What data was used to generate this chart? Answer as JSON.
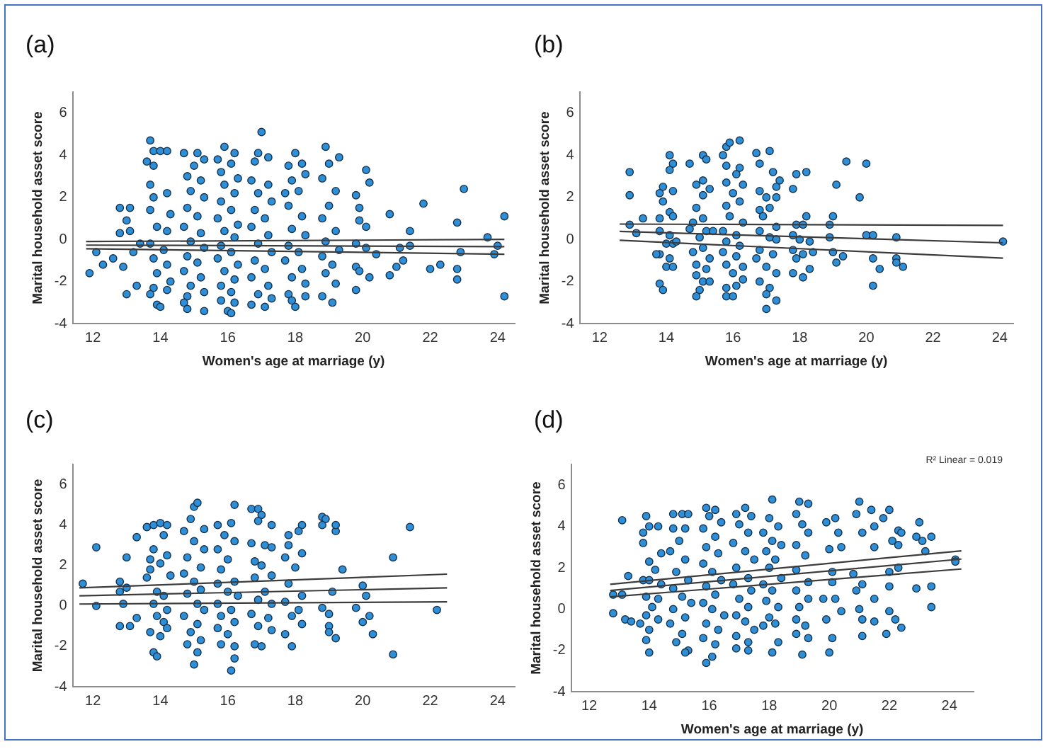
{
  "chart_data": [
    {
      "type": "scatter",
      "title": "(a)",
      "xlabel": "Women's age at marriage (y)",
      "ylabel": "Marital household asset score",
      "xlim": [
        11.4,
        24.5
      ],
      "xticks": [
        12,
        14,
        16,
        18,
        20,
        22,
        24
      ],
      "ylim": [
        -4,
        7
      ],
      "yticks": [
        -4,
        -2,
        0,
        2,
        4,
        6
      ],
      "marker": "circle",
      "series": [
        {
          "color": "#2e8ed6",
          "x": [
            11.9,
            12.3,
            12.6,
            12.1,
            12.8,
            13.1,
            13.0,
            13.1,
            12.8,
            12.9,
            13.0,
            13.3,
            13.4,
            13.2,
            13.7,
            13.8,
            14.0,
            14.2,
            13.6,
            13.8,
            13.7,
            14.2,
            13.8,
            13.7,
            14.3,
            13.9,
            14.2,
            13.7,
            14.1,
            13.8,
            14.2,
            13.9,
            14.3,
            13.8,
            14.2,
            13.9,
            14.0,
            13.7,
            14.7,
            15.1,
            15.3,
            15.0,
            14.8,
            15.2,
            14.9,
            15.3,
            14.8,
            15.1,
            14.7,
            15.2,
            14.9,
            15.3,
            14.8,
            15.1,
            14.7,
            15.2,
            14.9,
            15.3,
            14.8,
            14.7,
            14.8,
            15.3,
            15.9,
            16.2,
            15.7,
            16.1,
            15.8,
            16.3,
            15.9,
            16.2,
            15.8,
            16.1,
            15.7,
            16.3,
            15.9,
            16.2,
            15.8,
            16.1,
            15.7,
            16.3,
            15.9,
            16.2,
            15.8,
            16.1,
            15.8,
            16.2,
            16.0,
            16.1,
            17.0,
            16.9,
            16.8,
            17.2,
            16.7,
            17.2,
            16.9,
            17.3,
            16.8,
            17.1,
            16.7,
            17.2,
            16.9,
            17.3,
            16.8,
            17.1,
            16.7,
            17.2,
            16.9,
            17.3,
            16.7,
            17.1,
            18.0,
            17.8,
            18.2,
            18.3,
            17.9,
            17.7,
            18.1,
            17.8,
            18.2,
            17.9,
            18.3,
            17.8,
            18.1,
            17.7,
            18.2,
            17.9,
            18.3,
            17.8,
            17.9,
            18.0,
            18.3,
            18.9,
            19.0,
            19.3,
            18.8,
            19.2,
            19.0,
            18.8,
            19.2,
            18.9,
            19.3,
            18.8,
            19.1,
            18.9,
            19.2,
            18.8,
            19.1,
            19.8,
            19.9,
            20.1,
            20.2,
            19.9,
            20.1,
            19.8,
            20.1,
            19.8,
            19.9,
            19.8,
            20.2,
            20.4,
            20.8,
            20.8,
            21.0,
            21.2,
            21.1,
            21.4,
            21.4,
            21.8,
            22.0,
            22.3,
            22.8,
            22.8,
            22.8,
            22.9,
            23.0,
            23.7,
            24.0,
            23.9,
            24.2,
            24.2
          ],
          "values": [
            -1.6,
            -1.2,
            -0.9,
            -0.6,
            1.5,
            1.5,
            0.9,
            0.4,
            0.3,
            -1.3,
            -2.6,
            -2.2,
            -0.2,
            -0.6,
            4.7,
            4.2,
            4.2,
            4.2,
            3.7,
            3.5,
            2.6,
            2.2,
            2.0,
            1.4,
            1.2,
            0.6,
            0.4,
            -0.2,
            -0.5,
            -0.9,
            -1.2,
            -1.6,
            -2.0,
            -2.3,
            -2.4,
            -3.1,
            -3.2,
            -2.6,
            4.1,
            4.1,
            3.8,
            3.5,
            3.0,
            2.8,
            2.3,
            2.0,
            1.5,
            1.1,
            0.6,
            0.3,
            -0.1,
            -0.4,
            -0.8,
            -1.1,
            -1.5,
            -1.8,
            -2.2,
            -2.5,
            -2.7,
            -3.0,
            -3.3,
            -3.4,
            4.4,
            4.1,
            3.8,
            3.6,
            3.2,
            2.9,
            2.6,
            2.2,
            1.8,
            1.4,
            1.0,
            0.7,
            0.4,
            0.1,
            -0.3,
            -0.6,
            -0.9,
            -1.2,
            -1.5,
            -1.9,
            -2.2,
            -2.5,
            -2.9,
            -3.0,
            -3.4,
            -3.5,
            5.1,
            4.1,
            3.7,
            3.9,
            2.8,
            2.6,
            2.2,
            1.8,
            1.4,
            1.0,
            0.6,
            0.2,
            -0.2,
            -0.6,
            -1.0,
            -1.4,
            -1.8,
            -2.2,
            -2.6,
            -2.8,
            -3.1,
            -3.2,
            4.1,
            3.5,
            3.6,
            3.1,
            2.8,
            2.2,
            2.3,
            1.6,
            1.1,
            0.5,
            0.2,
            -0.3,
            -0.6,
            -1.0,
            -1.4,
            -1.8,
            -2.1,
            -2.6,
            -2.9,
            -3.2,
            -2.7,
            4.4,
            3.6,
            3.9,
            2.9,
            2.3,
            1.6,
            1.0,
            0.4,
            -0.1,
            -0.5,
            -0.8,
            -1.2,
            -1.6,
            -2.1,
            -2.7,
            -3.0,
            2.1,
            1.5,
            3.3,
            2.7,
            0.9,
            0.6,
            -0.2,
            -0.4,
            -1.3,
            -1.5,
            -2.4,
            -1.8,
            -0.7,
            1.2,
            -1.7,
            -1.3,
            -1.0,
            -0.4,
            0.4,
            -0.3,
            1.7,
            -1.4,
            -1.2,
            0.8,
            -1.4,
            -1.9,
            -0.6,
            2.4,
            0.1,
            -0.3,
            -0.7,
            1.1,
            -2.7
          ]
        },
        {
          "type": "line",
          "marker": "none",
          "color": "#3c3c3c",
          "x": [
            11.8,
            24.2
          ],
          "values": [
            -0.27,
            -0.34
          ]
        },
        {
          "type": "line",
          "marker": "none",
          "color": "#3c3c3c",
          "x": [
            11.8,
            24.2
          ],
          "values": [
            -0.1,
            0.0
          ]
        },
        {
          "type": "line",
          "marker": "none",
          "color": "#3c3c3c",
          "x": [
            11.8,
            24.2
          ],
          "values": [
            -0.44,
            -0.7
          ]
        }
      ]
    },
    {
      "type": "scatter",
      "title": "(b)",
      "xlabel": "Women's age at marriage (y)",
      "ylabel": "Marital household asset score",
      "xlim": [
        11.4,
        24.4
      ],
      "xticks": [
        12,
        14,
        16,
        18,
        20,
        22,
        24
      ],
      "ylim": [
        -4,
        7
      ],
      "yticks": [
        -4,
        -2,
        0,
        2,
        4,
        6
      ],
      "marker": "circle",
      "series": [
        {
          "color": "#2e8ed6",
          "x": [
            12.9,
            12.9,
            12.9,
            13.1,
            13.3,
            14.1,
            14.2,
            14.1,
            13.9,
            13.8,
            14.2,
            13.9,
            14.1,
            14.2,
            13.8,
            13.8,
            14.1,
            14.0,
            14.2,
            13.8,
            13.7,
            14.1,
            14.0,
            14.2,
            13.8,
            13.9,
            14.3,
            14.7,
            15.1,
            15.2,
            14.9,
            15.1,
            15.3,
            15.1,
            14.9,
            14.8,
            15.1,
            14.7,
            15.2,
            15.0,
            14.8,
            15.1,
            15.3,
            14.9,
            15.2,
            14.9,
            15.1,
            15.3,
            15.0,
            14.9,
            15.4,
            15.8,
            15.9,
            16.2,
            15.7,
            15.8,
            16.1,
            16.2,
            15.8,
            16.3,
            16.0,
            15.8,
            16.2,
            15.9,
            16.3,
            15.7,
            16.1,
            15.8,
            16.2,
            15.7,
            16.1,
            15.8,
            16.3,
            16.0,
            15.8,
            16.1,
            16.3,
            15.8,
            16.0,
            16.7,
            17.1,
            16.8,
            17.2,
            17.4,
            16.8,
            17.0,
            17.3,
            16.8,
            17.1,
            17.3,
            16.9,
            17.3,
            16.8,
            17.1,
            17.3,
            16.8,
            17.2,
            16.7,
            17.0,
            17.3,
            16.8,
            17.1,
            17.0,
            17.3,
            17.0,
            17.9,
            18.2,
            17.8,
            18.2,
            17.9,
            18.1,
            17.8,
            18.0,
            18.3,
            17.8,
            18.1,
            17.9,
            18.3,
            17.8,
            18.1,
            18.4,
            18.9,
            19.0,
            19.1,
            19.4,
            18.9,
            19.0,
            19.1,
            19.3,
            19.8,
            20.0,
            20.0,
            20.2,
            20.2,
            20.2,
            20.4,
            20.9,
            20.9,
            20.9,
            21.1,
            24.1
          ],
          "values": [
            3.2,
            2.1,
            0.7,
            0.3,
            1.0,
            4.0,
            3.6,
            3.3,
            2.5,
            2.2,
            2.3,
            1.8,
            1.3,
            1.1,
            1.0,
            0.4,
            0.2,
            -0.2,
            -0.2,
            -0.7,
            -0.7,
            -0.9,
            -1.3,
            -1.3,
            -2.1,
            -2.4,
            -0.1,
            3.6,
            4.0,
            3.8,
            2.6,
            2.8,
            2.4,
            2.1,
            1.5,
            0.8,
            1.0,
            0.5,
            0.4,
            0.1,
            -0.6,
            -0.4,
            -0.9,
            -1.2,
            -1.4,
            -1.7,
            -2.0,
            -2.0,
            -2.4,
            -2.7,
            0.4,
            4.4,
            4.6,
            4.7,
            4.0,
            3.5,
            3.1,
            3.4,
            2.7,
            2.6,
            2.2,
            1.6,
            1.8,
            1.1,
            0.8,
            0.4,
            0.2,
            -0.1,
            -0.3,
            -0.6,
            -0.8,
            -1.2,
            -1.3,
            -1.6,
            -2.3,
            -2.2,
            -1.9,
            -2.7,
            -2.7,
            4.1,
            4.2,
            3.6,
            3.2,
            2.8,
            2.3,
            2.0,
            2.5,
            1.4,
            1.5,
            2.0,
            1.1,
            0.6,
            0.4,
            0.1,
            0.0,
            -0.5,
            -0.7,
            -0.9,
            -1.3,
            -1.6,
            -2.0,
            -2.3,
            -2.6,
            -2.9,
            -3.3,
            3.1,
            3.2,
            2.4,
            1.1,
            0.7,
            0.7,
            0.2,
            0.0,
            -0.1,
            -0.5,
            -0.7,
            -0.9,
            -1.4,
            -1.6,
            -1.8,
            -0.6,
            0.7,
            1.1,
            2.6,
            3.7,
            0.1,
            -0.6,
            -1.1,
            -0.8,
            2.0,
            3.6,
            0.2,
            0.2,
            -0.9,
            -2.2,
            -1.4,
            0.1,
            -0.9,
            -1.1,
            -1.3,
            -0.1
          ]
        },
        {
          "type": "line",
          "marker": "none",
          "color": "#3c3c3c",
          "x": [
            12.6,
            24.1
          ],
          "values": [
            0.38,
            -0.16
          ]
        },
        {
          "type": "line",
          "marker": "none",
          "color": "#3c3c3c",
          "x": [
            12.6,
            24.1
          ],
          "values": [
            0.73,
            0.67
          ]
        },
        {
          "type": "line",
          "marker": "none",
          "color": "#3c3c3c",
          "x": [
            12.6,
            24.1
          ],
          "values": [
            -0.04,
            -0.89
          ]
        }
      ]
    },
    {
      "type": "scatter",
      "title": "(c)",
      "ylabel": "Marital household asset score",
      "xlim": [
        11.4,
        24.5
      ],
      "xticks": [
        12,
        14,
        16,
        18,
        20,
        22,
        24
      ],
      "ylim": [
        -4,
        7
      ],
      "yticks": [
        -4,
        -2,
        0,
        2,
        4,
        6
      ],
      "marker": "circle",
      "series": [
        {
          "color": "#2e8ed6",
          "x": [
            11.7,
            12.1,
            12.1,
            12.8,
            12.8,
            12.9,
            12.8,
            13.0,
            13.0,
            13.1,
            13.3,
            13.3,
            13.6,
            13.6,
            13.8,
            14.0,
            14.2,
            14.1,
            13.8,
            14.2,
            13.7,
            14.3,
            13.7,
            14.0,
            13.9,
            14.1,
            13.8,
            14.2,
            13.9,
            14.1,
            13.7,
            14.2,
            14.0,
            13.8,
            13.9,
            15.0,
            15.1,
            14.9,
            15.3,
            14.7,
            15.0,
            15.3,
            14.8,
            15.2,
            14.7,
            15.0,
            15.2,
            14.8,
            15.1,
            15.3,
            14.7,
            15.1,
            14.9,
            15.2,
            14.8,
            15.1,
            15.0,
            16.2,
            15.7,
            16.1,
            15.9,
            16.2,
            15.7,
            16.0,
            15.8,
            16.2,
            15.7,
            16.0,
            16.3,
            15.7,
            16.1,
            15.8,
            16.2,
            15.7,
            16.0,
            15.8,
            16.2,
            16.2,
            16.1,
            16.7,
            16.9,
            17.0,
            16.9,
            17.3,
            16.7,
            17.1,
            17.3,
            16.8,
            17.0,
            17.3,
            16.8,
            17.1,
            16.9,
            17.3,
            16.7,
            17.2,
            16.9,
            17.3,
            16.8,
            17.0,
            18.2,
            18.1,
            17.8,
            17.8,
            17.7,
            18.2,
            18.0,
            17.8,
            18.2,
            17.7,
            18.1,
            17.9,
            18.2,
            17.7,
            17.9,
            18.8,
            18.9,
            18.8,
            19.2,
            19.2,
            19.4,
            19.1,
            18.8,
            19.0,
            19.0,
            19.0,
            19.2,
            19.8,
            20.0,
            20.0,
            20.1,
            20.2,
            20.3,
            20.9,
            20.9,
            21.4,
            22.2
          ],
          "values": [
            1.1,
            2.9,
            0.0,
            1.2,
            0.7,
            0.1,
            -1.0,
            2.4,
            0.9,
            -1.0,
            -0.6,
            3.4,
            1.4,
            3.9,
            4.0,
            4.1,
            4.0,
            3.5,
            2.8,
            2.5,
            2.3,
            1.5,
            1.8,
            2.1,
            0.7,
            0.5,
            0.1,
            -0.2,
            -0.5,
            -0.8,
            -1.3,
            -1.1,
            -1.5,
            -2.3,
            -2.5,
            4.9,
            5.1,
            4.3,
            3.8,
            3.7,
            3.2,
            2.8,
            2.4,
            1.9,
            1.6,
            1.2,
            0.8,
            0.6,
            0.1,
            -0.2,
            -0.5,
            -0.9,
            -1.3,
            -1.7,
            -1.9,
            -2.3,
            -2.9,
            5.0,
            4.0,
            4.1,
            3.5,
            3.2,
            2.8,
            2.3,
            1.8,
            1.2,
            1.1,
            0.7,
            0.5,
            0.1,
            -0.2,
            -0.5,
            -0.8,
            -1.1,
            -1.4,
            -1.9,
            -2.0,
            -2.6,
            -3.2,
            4.8,
            4.8,
            4.5,
            4.2,
            4.0,
            3.1,
            3.0,
            2.9,
            2.2,
            2.0,
            1.5,
            1.4,
            0.7,
            0.3,
            0.1,
            -0.4,
            -0.6,
            -1.0,
            -1.2,
            -1.9,
            -2.0,
            4.0,
            3.7,
            3.5,
            3.0,
            2.4,
            2.6,
            1.9,
            1.1,
            0.5,
            0.2,
            -0.2,
            -0.5,
            -0.9,
            -1.4,
            -2.0,
            4.4,
            4.3,
            4.0,
            3.7,
            4.0,
            1.8,
            0.7,
            -0.1,
            -0.4,
            -1.0,
            -1.3,
            -1.6,
            -0.1,
            -0.8,
            1.0,
            0.5,
            -0.5,
            -1.4,
            2.4,
            -2.4,
            3.9,
            -0.2
          ]
        },
        {
          "type": "line",
          "marker": "none",
          "color": "#3c3c3c",
          "x": [
            11.6,
            22.5
          ],
          "values": [
            0.5,
            0.89
          ]
        },
        {
          "type": "line",
          "marker": "none",
          "color": "#3c3c3c",
          "x": [
            11.6,
            22.5
          ],
          "values": [
            0.89,
            1.57
          ]
        },
        {
          "type": "line",
          "marker": "none",
          "color": "#3c3c3c",
          "x": [
            11.6,
            22.5
          ],
          "values": [
            0.09,
            0.2
          ]
        }
      ]
    },
    {
      "type": "scatter",
      "title": "(d)",
      "xlabel": "Women's age at marriage (y)",
      "ylabel": "Marital household asset score",
      "xlim": [
        11.4,
        24.8
      ],
      "xticks": [
        12,
        14,
        16,
        18,
        20,
        22,
        24
      ],
      "ylim": [
        -4,
        7
      ],
      "yticks": [
        -4,
        -2,
        0,
        2,
        4,
        6
      ],
      "marker": "circle",
      "annotations": [
        "R² Linear = 0.019"
      ],
      "series": [
        {
          "color": "#2e8ed6",
          "x": [
            12.8,
            13.1,
            13.1,
            12.8,
            13.3,
            13.2,
            13.4,
            13.7,
            13.8,
            13.8,
            13.9,
            14.0,
            13.8,
            14.3,
            14.0,
            14.4,
            14.2,
            14.0,
            14.4,
            13.9,
            14.3,
            14.1,
            13.9,
            14.3,
            14.0,
            13.9,
            14.0,
            14.8,
            15.1,
            15.3,
            14.8,
            15.2,
            15.0,
            14.7,
            15.2,
            14.9,
            15.3,
            14.8,
            15.1,
            15.4,
            14.8,
            15.2,
            14.7,
            15.1,
            14.9,
            15.3,
            15.2,
            15.9,
            16.2,
            16.0,
            16.4,
            15.8,
            16.2,
            15.9,
            16.3,
            15.8,
            16.1,
            16.4,
            15.9,
            16.2,
            15.8,
            16.1,
            16.5,
            15.9,
            16.3,
            15.8,
            16.2,
            16.1,
            15.9,
            17.2,
            16.9,
            17.4,
            17.0,
            17.3,
            16.8,
            17.2,
            17.5,
            16.9,
            17.3,
            16.8,
            17.4,
            17.0,
            17.3,
            16.9,
            17.2,
            17.5,
            16.9,
            17.3,
            16.9,
            17.3,
            18.1,
            18.0,
            18.3,
            17.8,
            18.1,
            18.4,
            17.9,
            18.2,
            18.0,
            18.4,
            17.8,
            18.1,
            17.9,
            18.3,
            18.0,
            18.2,
            17.8,
            18.1,
            18.3,
            19.0,
            19.3,
            18.9,
            19.1,
            19.3,
            18.9,
            19.2,
            18.9,
            19.3,
            18.9,
            19.3,
            19.0,
            18.9,
            19.2,
            18.9,
            19.3,
            19.1,
            19.9,
            20.2,
            20.3,
            20.0,
            20.4,
            20.1,
            20.1,
            19.8,
            19.9,
            20.0,
            20.1,
            20.4,
            20.2,
            20.9,
            21.0,
            21.1,
            20.8,
            20.9,
            21.1,
            21.1,
            21.1,
            21.0,
            21.4,
            21.5,
            21.5,
            21.5,
            21.5,
            21.8,
            22.0,
            22.0,
            22.0,
            21.9,
            22.0,
            22.1,
            22.3,
            22.3,
            22.4,
            22.3,
            22.2,
            22.4,
            22.9,
            23.0,
            22.9,
            23.1,
            23.4,
            23.2,
            23.4,
            23.4,
            24.2,
            24.2
          ],
          "values": [
            0.7,
            4.3,
            0.7,
            -0.2,
            1.6,
            -0.5,
            -0.6,
            -0.7,
            1.4,
            3.2,
            4.5,
            4.0,
            3.7,
            4.0,
            2.3,
            2.7,
            1.9,
            1.4,
            1.2,
            0.6,
            0.5,
            0.1,
            -0.3,
            -0.5,
            -1.0,
            -1.5,
            -2.1,
            4.6,
            4.6,
            4.6,
            3.9,
            3.9,
            3.3,
            2.8,
            2.4,
            1.8,
            1.4,
            1.0,
            0.6,
            0.3,
            0.0,
            -0.4,
            -0.7,
            -1.2,
            -1.6,
            -2.0,
            -2.1,
            4.9,
            4.8,
            4.5,
            4.2,
            3.9,
            3.5,
            3.0,
            2.7,
            2.2,
            1.8,
            1.4,
            1.1,
            0.7,
            0.3,
            0.0,
            -0.3,
            -0.7,
            -1.0,
            -1.4,
            -1.7,
            -2.3,
            -2.6,
            4.9,
            4.6,
            4.5,
            4.1,
            3.7,
            3.2,
            2.8,
            2.4,
            2.0,
            1.5,
            1.2,
            0.9,
            0.5,
            0.1,
            -0.3,
            -0.6,
            -1.0,
            -1.3,
            -1.6,
            -1.9,
            -2.0,
            5.3,
            4.4,
            4.0,
            3.7,
            3.3,
            3.1,
            2.8,
            2.4,
            2.0,
            1.5,
            1.2,
            0.9,
            0.4,
            0.1,
            -0.4,
            -0.7,
            -0.8,
            -2.1,
            -1.6,
            5.2,
            5.1,
            4.6,
            4.1,
            3.7,
            3.1,
            2.6,
            1.9,
            1.3,
            0.9,
            0.5,
            0.1,
            -0.5,
            -0.8,
            -1.2,
            -1.4,
            -2.2,
            4.2,
            4.4,
            3.7,
            2.9,
            3.0,
            1.8,
            1.3,
            0.5,
            -0.5,
            -2.1,
            -1.4,
            -0.1,
            0.5,
            4.6,
            5.2,
            3.7,
            1.7,
            0.9,
            1.2,
            -0.5,
            -1.3,
            0.0,
            4.8,
            4.0,
            3.0,
            0.5,
            -0.6,
            4.4,
            4.8,
            1.8,
            1.1,
            -1.2,
            -0.1,
            3.3,
            3.1,
            3.8,
            3.7,
            2.0,
            -0.5,
            -0.9,
            3.5,
            4.2,
            1.0,
            3.3,
            3.5,
            2.8,
            1.1,
            0.1,
            2.4,
            2.3
          ]
        },
        {
          "type": "line",
          "marker": "none",
          "color": "#3c3c3c",
          "x": [
            12.7,
            24.4
          ],
          "values": [
            0.9,
            2.42
          ]
        },
        {
          "type": "line",
          "marker": "none",
          "color": "#3c3c3c",
          "x": [
            12.7,
            24.4
          ],
          "values": [
            1.2,
            2.82
          ]
        },
        {
          "type": "line",
          "marker": "none",
          "color": "#3c3c3c",
          "x": [
            12.7,
            24.4
          ],
          "values": [
            0.59,
            1.94
          ]
        }
      ]
    }
  ]
}
